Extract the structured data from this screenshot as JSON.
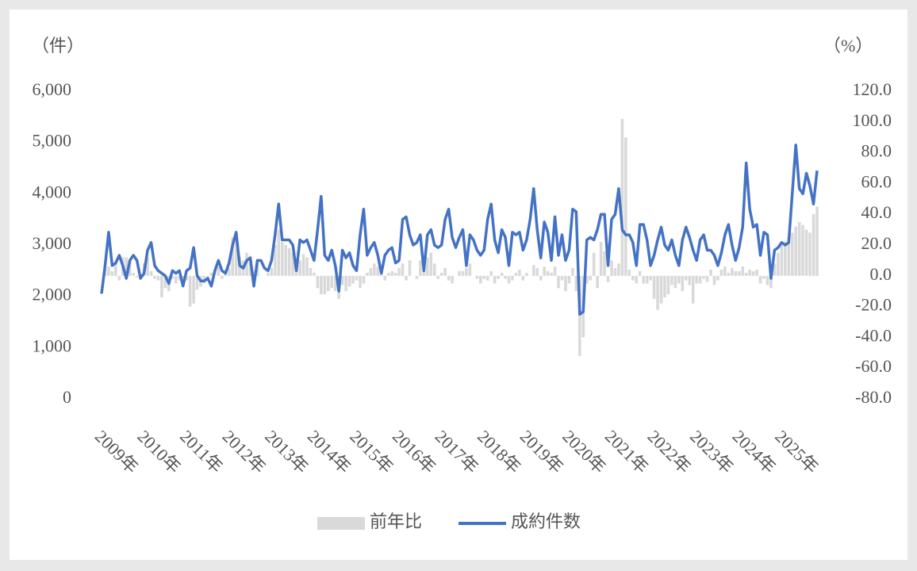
{
  "chart_data": {
    "type": "bar-line",
    "y_label": "（件）",
    "y2_label": "（%）",
    "categories": [
      "2009年",
      null,
      null,
      null,
      null,
      null,
      null,
      null,
      null,
      null,
      null,
      null,
      "2010年",
      null,
      null,
      null,
      null,
      null,
      null,
      null,
      null,
      null,
      null,
      null,
      "2011年",
      null,
      null,
      null,
      null,
      null,
      null,
      null,
      null,
      null,
      null,
      null,
      "2012年",
      null,
      null,
      null,
      null,
      null,
      null,
      null,
      null,
      null,
      null,
      null,
      "2013年",
      null,
      null,
      null,
      null,
      null,
      null,
      null,
      null,
      null,
      null,
      null,
      "2014年",
      null,
      null,
      null,
      null,
      null,
      null,
      null,
      null,
      null,
      null,
      null,
      "2015年",
      null,
      null,
      null,
      null,
      null,
      null,
      null,
      null,
      null,
      null,
      null,
      "2016年",
      null,
      null,
      null,
      null,
      null,
      null,
      null,
      null,
      null,
      null,
      null,
      "2017年",
      null,
      null,
      null,
      null,
      null,
      null,
      null,
      null,
      null,
      null,
      null,
      "2018年",
      null,
      null,
      null,
      null,
      null,
      null,
      null,
      null,
      null,
      null,
      null,
      "2019年",
      null,
      null,
      null,
      null,
      null,
      null,
      null,
      null,
      null,
      null,
      null,
      "2020年",
      null,
      null,
      null,
      null,
      null,
      null,
      null,
      null,
      null,
      null,
      null,
      "2021年",
      null,
      null,
      null,
      null,
      null,
      null,
      null,
      null,
      null,
      null,
      null,
      "2022年",
      null,
      null,
      null,
      null,
      null,
      null,
      null,
      null,
      null,
      null,
      null,
      "2023年",
      null,
      null,
      null,
      null,
      null,
      null,
      null,
      null,
      null,
      null,
      null,
      "2024年",
      null,
      null,
      null,
      null,
      null,
      null,
      null,
      null,
      null,
      null,
      null,
      "2025年",
      null,
      null,
      null,
      null,
      null,
      null,
      null,
      null,
      null,
      null
    ],
    "series": [
      {
        "name": "前年比",
        "type": "bar",
        "axis": "y2",
        "color": "#d9d9d9",
        "values": [
          0,
          5,
          6,
          3,
          8,
          -3,
          12,
          12,
          10,
          2,
          -1,
          -2,
          8,
          12,
          3,
          -2,
          -3,
          -14,
          -8,
          -10,
          -2,
          -5,
          -3,
          -6,
          -3,
          -20,
          -18,
          -9,
          -7,
          -5,
          -2,
          2,
          0,
          6,
          -2,
          1,
          5,
          25,
          28,
          12,
          10,
          15,
          13,
          3,
          8,
          0,
          0,
          2,
          5,
          20,
          30,
          22,
          20,
          18,
          15,
          10,
          10,
          14,
          12,
          5,
          2,
          -8,
          -12,
          -12,
          -10,
          -8,
          -10,
          -15,
          -6,
          -10,
          -7,
          -5,
          -3,
          -8,
          -5,
          2,
          5,
          8,
          6,
          3,
          -3,
          2,
          3,
          2,
          5,
          8,
          -3,
          10,
          0,
          -2,
          10,
          5,
          12,
          15,
          8,
          -2,
          2,
          5,
          -3,
          -5,
          0,
          3,
          3,
          5,
          8,
          0,
          -2,
          -5,
          -2,
          -3,
          3,
          -5,
          -2,
          2,
          -2,
          -5,
          -3,
          2,
          4,
          -3,
          2,
          0,
          7,
          5,
          -3,
          6,
          3,
          2,
          6,
          -8,
          -3,
          -10,
          -5,
          5,
          -10,
          -52,
          -40,
          -5,
          -3,
          15,
          -8,
          22,
          16,
          -4,
          10,
          5,
          8,
          102,
          90,
          4,
          -3,
          -5,
          3,
          -5,
          -5,
          -3,
          -15,
          -22,
          -18,
          -14,
          -12,
          -6,
          -8,
          -5,
          -10,
          -3,
          -6,
          -18,
          -5,
          -5,
          -2,
          -4,
          4,
          -6,
          -3,
          4,
          6,
          2,
          5,
          3,
          3,
          6,
          2,
          4,
          3,
          4,
          -5,
          -2,
          -6,
          -8,
          8,
          15,
          20,
          22,
          25,
          28,
          32,
          35,
          33,
          30,
          28,
          40,
          45
        ]
      },
      {
        "name": "成約件数",
        "type": "line",
        "axis": "y",
        "color": "#4472c4",
        "values": [
          2050,
          2600,
          3250,
          2600,
          2650,
          2800,
          2600,
          2350,
          2700,
          2800,
          2700,
          2350,
          2450,
          2900,
          3050,
          2600,
          2500,
          2450,
          2400,
          2250,
          2500,
          2450,
          2500,
          2200,
          2500,
          2550,
          2950,
          2400,
          2300,
          2300,
          2350,
          2200,
          2500,
          2700,
          2500,
          2450,
          2650,
          3000,
          3250,
          2600,
          2550,
          2700,
          2750,
          2200,
          2700,
          2700,
          2550,
          2500,
          2700,
          3200,
          3800,
          3100,
          3100,
          3100,
          3000,
          2500,
          3100,
          3050,
          3100,
          2900,
          2700,
          3300,
          3950,
          2800,
          2700,
          2900,
          2600,
          2100,
          2900,
          2750,
          2850,
          2600,
          2500,
          3200,
          3700,
          2800,
          2950,
          3050,
          2800,
          2450,
          2800,
          2900,
          2950,
          2650,
          2700,
          3500,
          3550,
          3200,
          3000,
          3050,
          3200,
          2500,
          3200,
          3300,
          3000,
          2950,
          3000,
          3500,
          3700,
          3150,
          2950,
          3150,
          3300,
          2600,
          3200,
          3100,
          2900,
          2800,
          2900,
          3500,
          3800,
          3100,
          2850,
          3300,
          3150,
          2600,
          3250,
          3200,
          3250,
          2900,
          3100,
          3500,
          4100,
          3300,
          2750,
          3450,
          3250,
          2700,
          3550,
          2800,
          3200,
          2700,
          2900,
          3700,
          3650,
          1650,
          1700,
          3100,
          3150,
          3100,
          3300,
          3600,
          3600,
          2600,
          3500,
          3600,
          4100,
          3300,
          3200,
          3200,
          3050,
          2600,
          3400,
          3400,
          3100,
          2600,
          2800,
          3100,
          3350,
          3000,
          2900,
          3100,
          2800,
          2600,
          3100,
          3350,
          3150,
          2900,
          2700,
          3100,
          3200,
          2900,
          2900,
          2800,
          2600,
          2850,
          3200,
          3400,
          3000,
          2700,
          2950,
          3350,
          4600,
          3700,
          3350,
          3400,
          2800,
          3250,
          3200,
          2350,
          2900,
          2950,
          3050,
          3000,
          3050,
          4000,
          4950,
          4100,
          4000,
          4400,
          4150,
          3800,
          4450
        ]
      }
    ],
    "ylim": [
      0,
      6000
    ],
    "yticks": [
      0,
      {
        "value": 1000,
        "label": "1,000"
      },
      {
        "value": 2000,
        "label": "2,000"
      },
      {
        "value": 3000,
        "label": "3,000"
      },
      {
        "value": 4000,
        "label": "4,000"
      },
      {
        "value": 5000,
        "label": "5,000"
      },
      {
        "value": 6000,
        "label": "6,000"
      }
    ],
    "y2lim": [
      -80,
      120
    ],
    "y2ticks": [
      {
        "value": -80,
        "label": "-80.0"
      },
      {
        "value": -60,
        "label": "-60.0"
      },
      {
        "value": -40,
        "label": "-40.0"
      },
      {
        "value": -20,
        "label": "-20.0"
      },
      {
        "value": 0,
        "label": "0.0"
      },
      {
        "value": 20,
        "label": "20.0"
      },
      {
        "value": 40,
        "label": "40.0"
      },
      {
        "value": 60,
        "label": "60.0"
      },
      {
        "value": 80,
        "label": "80.0"
      },
      {
        "value": 100,
        "label": "100.0"
      },
      {
        "value": 120,
        "label": "120.0"
      }
    ],
    "negative_tick_color": "#d9342b",
    "legend": "bottom"
  }
}
